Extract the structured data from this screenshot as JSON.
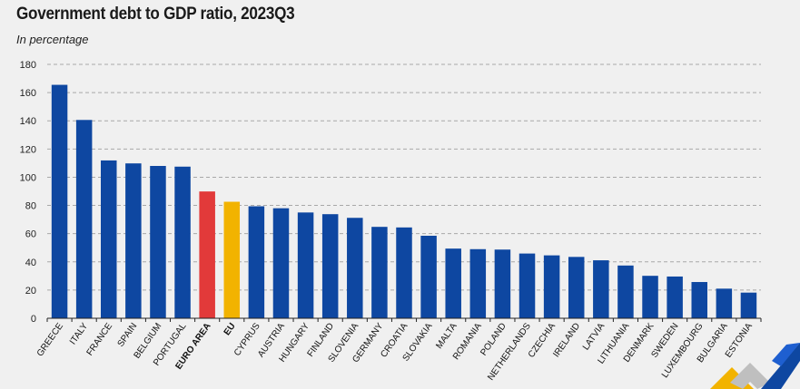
{
  "chart_data": {
    "type": "bar",
    "title": "Government debt to GDP ratio, 2023Q3",
    "subtitle": "In percentage",
    "categories": [
      "GREECE",
      "ITALY",
      "FRANCE",
      "SPAIN",
      "BELGIUM",
      "PORTUGAL",
      "EURO AREA",
      "EU",
      "CYPRUS",
      "AUSTRIA",
      "HUNGARY",
      "FINLAND",
      "SLOVENIA",
      "GERMANY",
      "CROATIA",
      "SLOVAKIA",
      "MALTA",
      "ROMANIA",
      "POLAND",
      "NETHERLANDS",
      "CZECHIA",
      "IRELAND",
      "LATVIA",
      "LITHUANIA",
      "DENMARK",
      "SWEDEN",
      "LUXEMBOURG",
      "BULGARIA",
      "ESTONIA"
    ],
    "values": [
      165.5,
      140.6,
      111.9,
      109.8,
      108.0,
      107.5,
      89.9,
      82.6,
      79.4,
      78.0,
      75.0,
      73.8,
      71.2,
      64.8,
      64.4,
      58.5,
      49.4,
      49.0,
      48.7,
      45.9,
      44.6,
      43.5,
      41.1,
      37.4,
      30.1,
      29.6,
      25.7,
      21.0,
      18.2
    ],
    "highlight": {
      "EURO AREA": "#e23a3a",
      "EU": "#f2b300"
    },
    "bar_color": "#0e47a1",
    "ylim": [
      0,
      180
    ],
    "yticks": [
      0,
      20,
      40,
      60,
      80,
      100,
      120,
      140,
      160,
      180
    ],
    "grid": true,
    "xlabel": "",
    "ylabel": ""
  },
  "logo": {
    "icon": "eurostat-logo-icon",
    "colors": [
      "#f2b300",
      "#0e47a1",
      "#bfbfbf"
    ]
  }
}
